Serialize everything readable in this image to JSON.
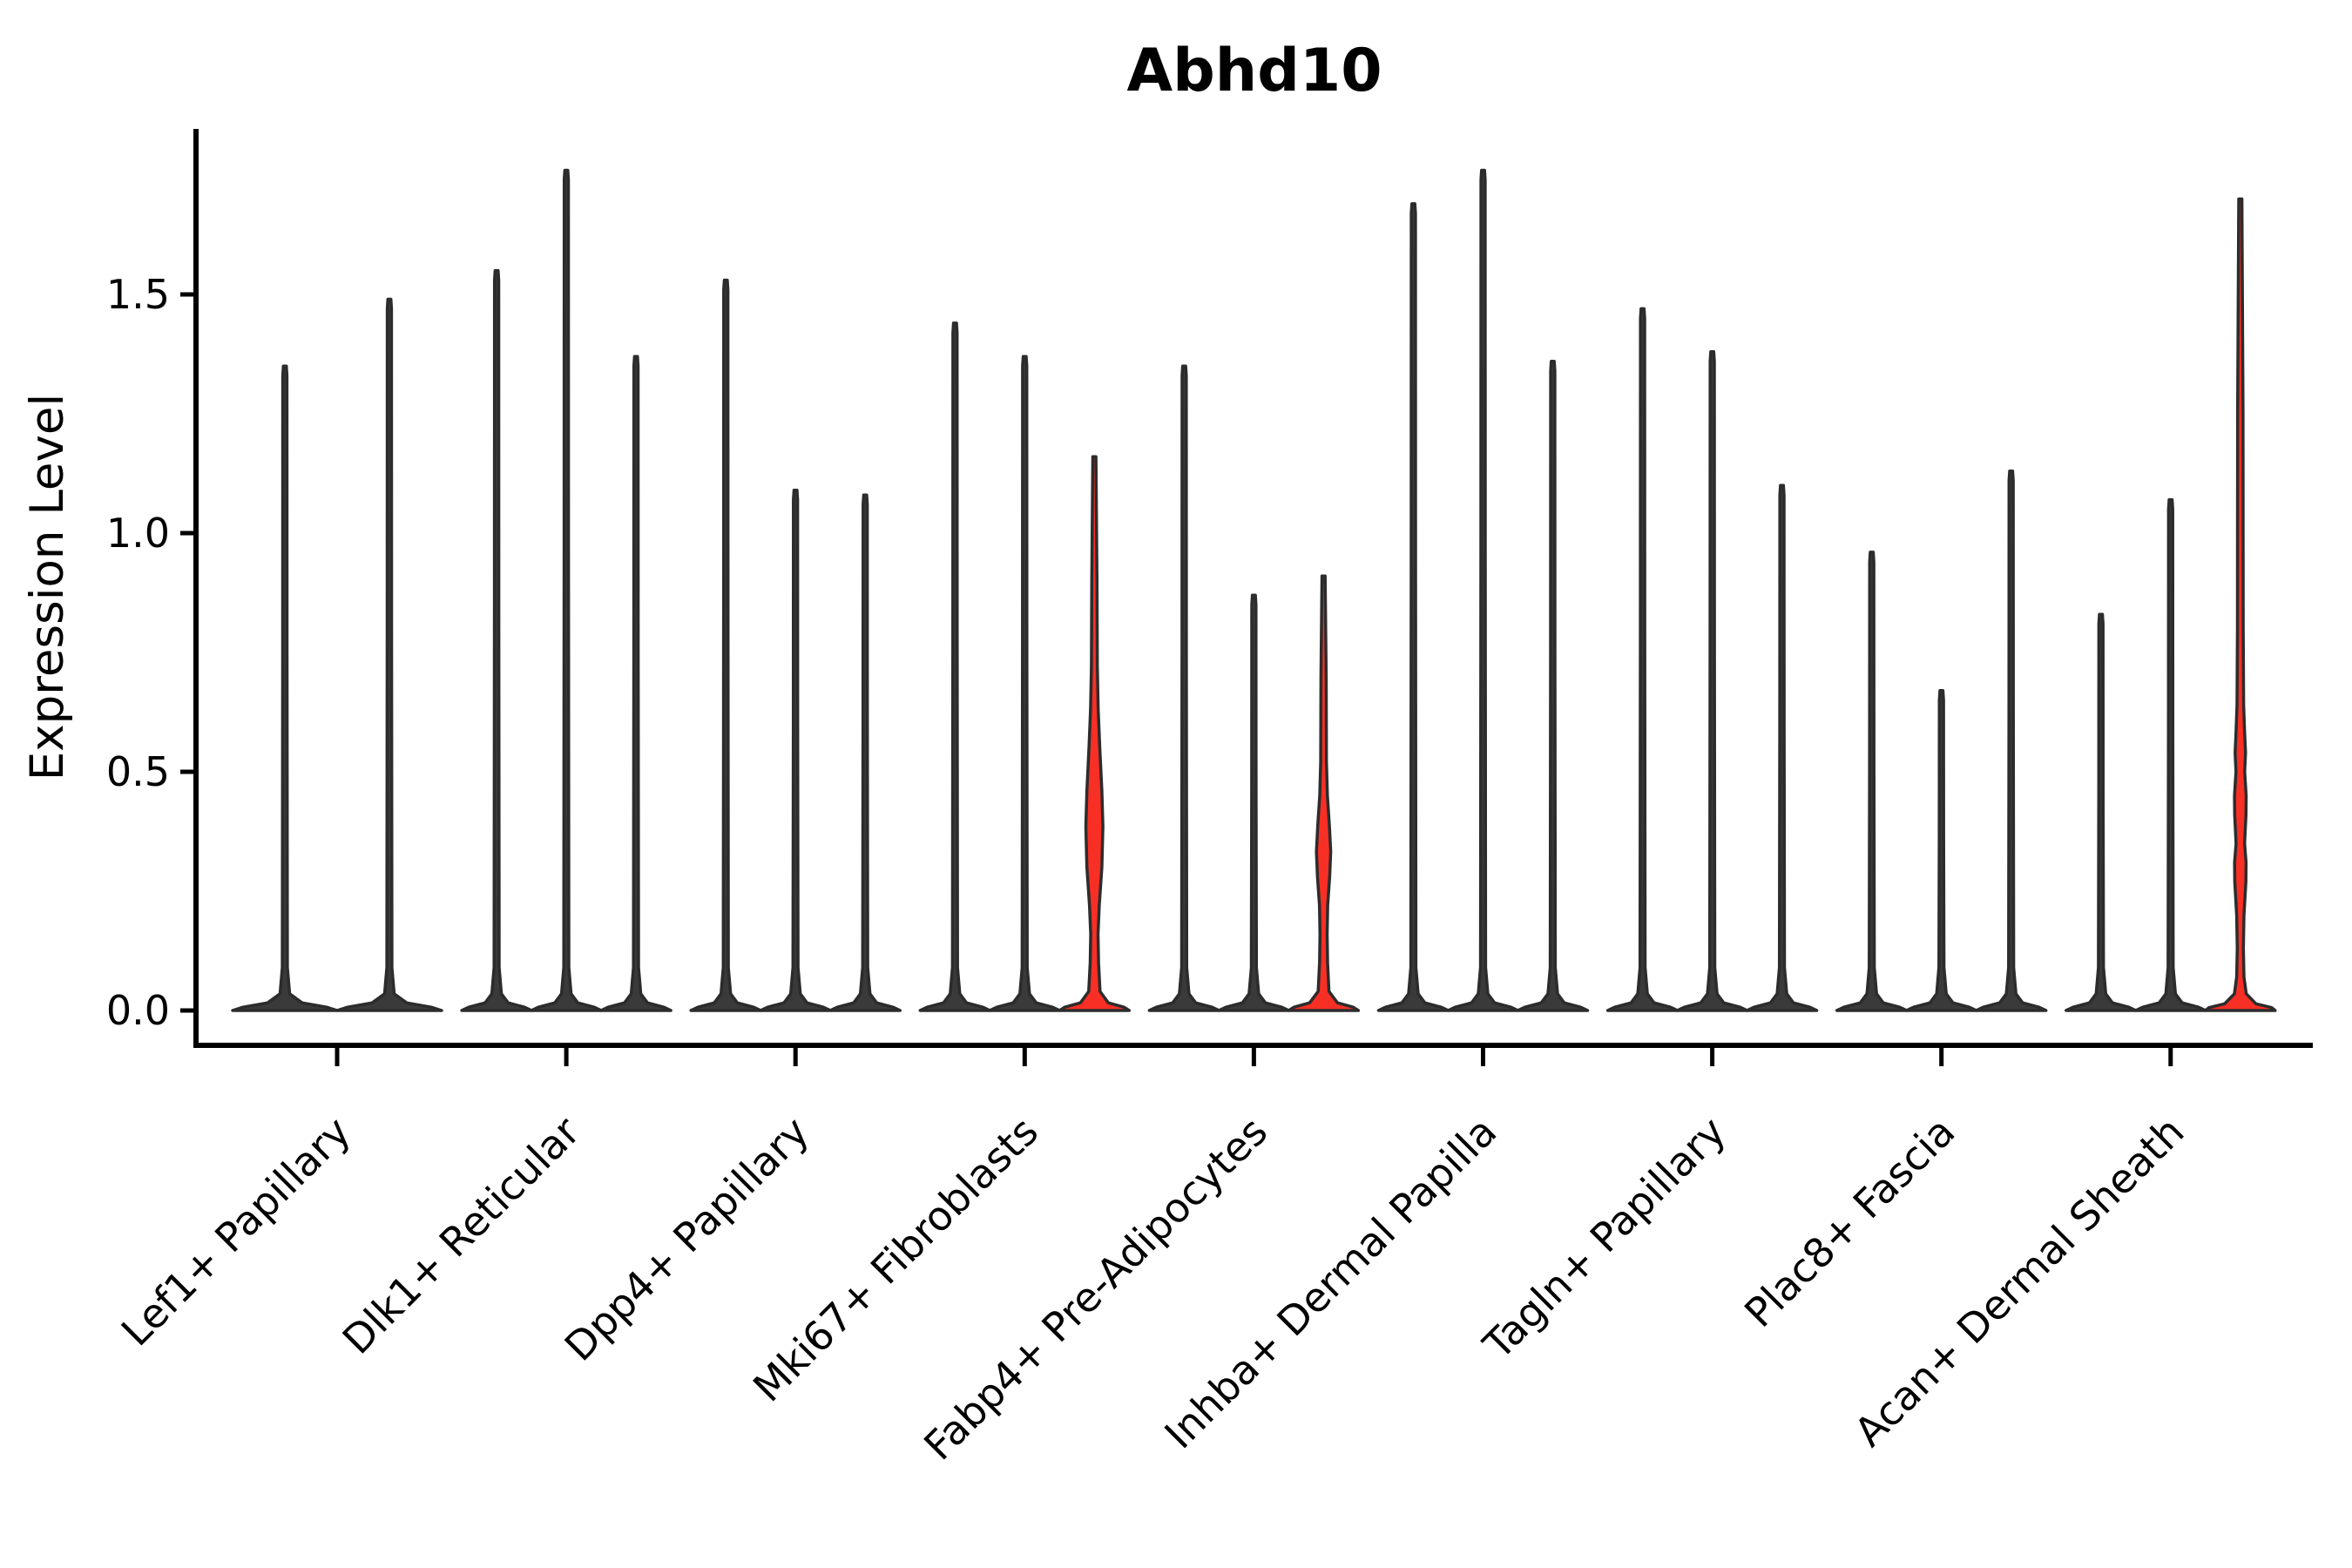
{
  "chart_data": {
    "type": "violin",
    "title": "Abhd10",
    "ylabel": "Expression Level",
    "xlabel": "",
    "yticks": [
      "0.0",
      "0.5",
      "1.0",
      "1.5"
    ],
    "ytick_values": [
      0,
      0.5,
      1.0,
      1.5
    ],
    "ylim": [
      -0.08,
      1.84
    ],
    "grid": "off",
    "legend": "none",
    "colors": {
      "red_fill": "#f82f25",
      "violin_fill": "#3a3a3a",
      "violin_stroke": "#2c2c2c",
      "axis": "#000000"
    },
    "groups": [
      {
        "label": "Lef1+ Papillary",
        "violins": [
          {
            "max": 1.35
          },
          {
            "max": 1.49
          }
        ]
      },
      {
        "label": "Dlk1+ Reticular",
        "violins": [
          {
            "max": 1.55
          },
          {
            "max": 1.76
          },
          {
            "max": 1.37
          }
        ]
      },
      {
        "label": "Dpp4+ Papillary",
        "violins": [
          {
            "max": 1.53
          },
          {
            "max": 1.09
          },
          {
            "max": 1.08
          }
        ]
      },
      {
        "label": "Mki67+ Fibroblasts",
        "violins": [
          {
            "max": 1.44
          },
          {
            "max": 1.37
          },
          {
            "max": 1.16,
            "fill": "red",
            "profile": [
              [
                0,
                40
              ],
              [
                0.007,
                34
              ],
              [
                0.016,
                16
              ],
              [
                0.04,
                6.5
              ],
              [
                0.1,
                4.8
              ],
              [
                0.16,
                4.2
              ],
              [
                0.22,
                5.6
              ],
              [
                0.3,
                8.6
              ],
              [
                0.385,
                9.8
              ],
              [
                0.46,
                8.6
              ],
              [
                0.55,
                6.2
              ],
              [
                0.63,
                4.4
              ],
              [
                0.72,
                3.4
              ],
              [
                0.9,
                3.0
              ],
              [
                1.16,
                1.8
              ]
            ]
          }
        ]
      },
      {
        "label": "Fabp4+ Pre-Adipocytes",
        "violins": [
          {
            "max": 1.35
          },
          {
            "max": 0.87
          },
          {
            "max": 0.91,
            "fill": "red",
            "profile": [
              [
                0,
                40
              ],
              [
                0.007,
                34
              ],
              [
                0.016,
                16
              ],
              [
                0.04,
                6.2
              ],
              [
                0.1,
                4.6
              ],
              [
                0.16,
                4.1
              ],
              [
                0.22,
                4.7
              ],
              [
                0.28,
                7.0
              ],
              [
                0.333,
                8.2
              ],
              [
                0.39,
                6.6
              ],
              [
                0.45,
                4.4
              ],
              [
                0.52,
                3.3
              ],
              [
                0.7,
                3.0
              ],
              [
                0.91,
                1.8
              ]
            ]
          }
        ]
      },
      {
        "label": "Inhba+ Dermal Papilla",
        "violins": [
          {
            "max": 1.69
          },
          {
            "max": 1.76
          },
          {
            "max": 1.36
          }
        ]
      },
      {
        "label": "Tagln+ Papillary",
        "violins": [
          {
            "max": 1.47
          },
          {
            "max": 1.38
          },
          {
            "max": 1.1
          }
        ]
      },
      {
        "label": "Plac8+ Fascia",
        "violins": [
          {
            "max": 0.96
          },
          {
            "max": 0.67
          },
          {
            "max": 1.13
          }
        ]
      },
      {
        "label": "Acan+ Dermal Sheath",
        "violins": [
          {
            "max": 0.83
          },
          {
            "max": 1.07
          },
          {
            "max": 1.7,
            "fill": "red",
            "profile": [
              [
                0,
                40
              ],
              [
                0.006,
                36
              ],
              [
                0.014,
                18
              ],
              [
                0.035,
                6.8
              ],
              [
                0.07,
                4.2
              ],
              [
                0.13,
                3.5
              ],
              [
                0.2,
                4.2
              ],
              [
                0.27,
                6.4
              ],
              [
                0.31,
                6.6
              ],
              [
                0.35,
                4.9
              ],
              [
                0.41,
                6.5
              ],
              [
                0.45,
                6.7
              ],
              [
                0.5,
                5.0
              ],
              [
                0.54,
                6.0
              ],
              [
                0.58,
                5.0
              ],
              [
                0.64,
                3.8
              ],
              [
                0.8,
                3.3
              ],
              [
                1.25,
                3.1
              ],
              [
                1.7,
                1.8
              ]
            ]
          }
        ]
      }
    ]
  }
}
